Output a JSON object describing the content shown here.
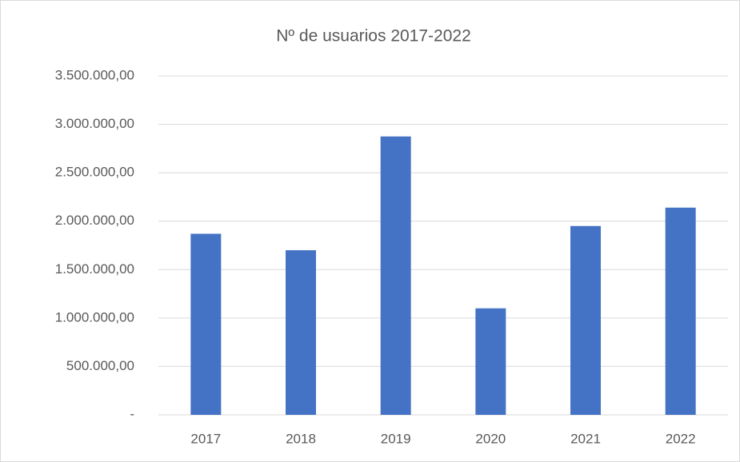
{
  "chart_data": {
    "type": "bar",
    "title": "Nº de usuarios 2017-2022",
    "categories": [
      "2017",
      "2018",
      "2019",
      "2020",
      "2021",
      "2022"
    ],
    "values": [
      1870000,
      1700000,
      2875000,
      1100000,
      1950000,
      2140000
    ],
    "color": "#4472c4",
    "ylim": [
      0,
      3500000
    ],
    "yticks": [
      {
        "value": 0,
        "label": "-"
      },
      {
        "value": 500000,
        "label": "500.000,00"
      },
      {
        "value": 1000000,
        "label": "1.000.000,00"
      },
      {
        "value": 1500000,
        "label": "1.500.000,00"
      },
      {
        "value": 2000000,
        "label": "2.000.000,00"
      },
      {
        "value": 2500000,
        "label": "2.500.000,00"
      },
      {
        "value": 3000000,
        "label": "3.000.000,00"
      },
      {
        "value": 3500000,
        "label": "3.500.000,00"
      }
    ],
    "grid": true
  }
}
